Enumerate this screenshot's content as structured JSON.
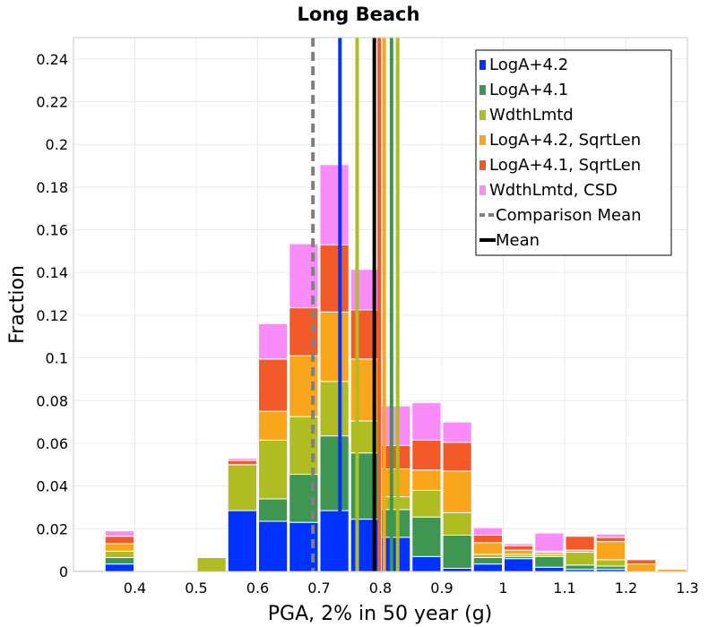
{
  "chart_data": {
    "type": "bar",
    "title": "Long Beach",
    "xlabel": "PGA, 2% in 50 year (g)",
    "ylabel": "Fraction",
    "xlim": [
      0.3,
      1.3
    ],
    "ylim": [
      0,
      0.25
    ],
    "x_ticks": [
      "0.4",
      "0.5",
      "0.6",
      "0.7",
      "0.8",
      "0.9",
      "1",
      "1.1",
      "1.2",
      "1.3"
    ],
    "y_ticks": [
      "0",
      "0.02",
      "0.04",
      "0.06",
      "0.08",
      "0.1",
      "0.12",
      "0.14",
      "0.16",
      "0.18",
      "0.2",
      "0.22",
      "0.24"
    ],
    "bin_width": 0.05,
    "bin_centers": [
      0.325,
      0.375,
      0.425,
      0.475,
      0.525,
      0.575,
      0.625,
      0.675,
      0.725,
      0.775,
      0.825,
      0.875,
      0.925,
      0.975,
      1.025,
      1.075,
      1.125,
      1.175,
      1.225,
      1.275
    ],
    "series": [
      {
        "name": "LogA+4.2",
        "color": "#0033ff",
        "values": [
          0,
          0.0035,
          0,
          0,
          0,
          0.0285,
          0.0235,
          0.023,
          0.0285,
          0.0245,
          0.016,
          0.007,
          0.0015,
          0.0035,
          0.006,
          0.002,
          0.001,
          0.001,
          0,
          0
        ]
      },
      {
        "name": "LogA+4.1",
        "color": "#3e9652",
        "values": [
          0,
          0.003,
          0,
          0,
          0,
          0,
          0.0105,
          0.0225,
          0.035,
          0.031,
          0.013,
          0.0185,
          0.0155,
          0.003,
          0.001,
          0.005,
          0.002,
          0.0015,
          0,
          0
        ]
      },
      {
        "name": "WdthLmtd",
        "color": "#afbd22",
        "values": [
          0,
          0.003,
          0,
          0,
          0.0065,
          0.0215,
          0.0275,
          0.027,
          0.0255,
          0.015,
          0.006,
          0.0125,
          0.0105,
          0.0015,
          0.001,
          0.001,
          0.006,
          0.003,
          0,
          0
        ]
      },
      {
        "name": "LogA+4.2, SqrtLen",
        "color": "#f9a61c",
        "values": [
          0,
          0.0035,
          0,
          0,
          0,
          0,
          0.0135,
          0.0285,
          0.0325,
          0.029,
          0.013,
          0.0095,
          0.0195,
          0.0055,
          0.002,
          0.001,
          0.001,
          0.0085,
          0.0035,
          0.001
        ]
      },
      {
        "name": "LogA+4.1, SqrtLen",
        "color": "#f25a29",
        "values": [
          0,
          0.0035,
          0,
          0,
          0,
          0.002,
          0.0245,
          0.0225,
          0.0315,
          0.023,
          0.011,
          0.014,
          0.0135,
          0.0035,
          0.002,
          0.0005,
          0.0065,
          0.002,
          0.002,
          0
        ]
      },
      {
        "name": "WdthLmtd, CSD",
        "color": "#fa8cfa",
        "values": [
          0.0005,
          0.0025,
          0,
          0,
          0,
          0.001,
          0.0165,
          0.03,
          0.0375,
          0.019,
          0.0185,
          0.0175,
          0.0095,
          0.0035,
          0.001,
          0.0085,
          0.0005,
          0.0015,
          0,
          0
        ]
      }
    ],
    "vertical_lines": [
      {
        "series": "LogA+4.2",
        "x": 0.734,
        "color": "#0033ff"
      },
      {
        "series": "WdthLmtd",
        "x": 0.762,
        "color": "#afbd22"
      },
      {
        "series": "LogA+4.1, SqrtLen",
        "x": 0.798,
        "color": "#f25a29"
      },
      {
        "series": "LogA+4.2, SqrtLen",
        "x": 0.806,
        "color": "#f9a61c"
      },
      {
        "series": "LogA+4.1",
        "x": 0.818,
        "color": "#3e9652"
      },
      {
        "series": "WdthLmtd",
        "x": 0.828,
        "color": "#afbd22"
      },
      {
        "series": "Comparison Mean",
        "x": 0.69,
        "color": "#808080",
        "dashed": true
      },
      {
        "series": "Mean",
        "x": 0.79,
        "color": "#000000"
      }
    ],
    "legend": {
      "placement": "top-right",
      "entries": [
        {
          "label": "LogA+4.2",
          "color": "#0033ff",
          "kind": "square"
        },
        {
          "label": "LogA+4.1",
          "color": "#3e9652",
          "kind": "square"
        },
        {
          "label": "WdthLmtd",
          "color": "#afbd22",
          "kind": "square"
        },
        {
          "label": "LogA+4.2, SqrtLen",
          "color": "#f9a61c",
          "kind": "square"
        },
        {
          "label": "LogA+4.1, SqrtLen",
          "color": "#f25a29",
          "kind": "square"
        },
        {
          "label": "WdthLmtd, CSD",
          "color": "#fa8cfa",
          "kind": "square"
        },
        {
          "label": "Comparison Mean",
          "color": "#808080",
          "kind": "dashed-line"
        },
        {
          "label": "Mean",
          "color": "#000000",
          "kind": "line"
        }
      ]
    },
    "grid": true
  }
}
